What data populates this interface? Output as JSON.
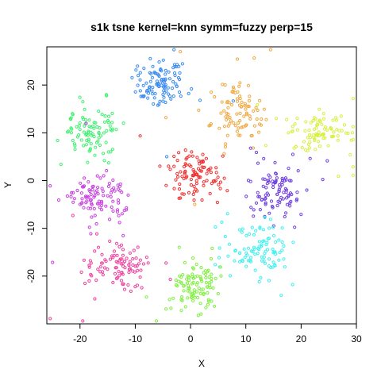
{
  "chart_data": {
    "type": "scatter",
    "title": "s1k tsne kernel=knn symm=fuzzy perp=15",
    "xlabel": "X",
    "ylabel": "Y",
    "xlim": [
      -26,
      30
    ],
    "ylim": [
      -30,
      28
    ],
    "xticks": [
      -20,
      -10,
      0,
      10,
      20,
      30
    ],
    "yticks": [
      -20,
      -10,
      0,
      10,
      20
    ],
    "grid": false,
    "marker": "open-circle",
    "clusters": [
      {
        "color": "#3b8cf0",
        "center": [
          -5.5,
          20.5
        ],
        "spread": [
          2.4,
          2.6
        ],
        "n": 110
      },
      {
        "color": "#f0a840",
        "center": [
          9.0,
          14.0
        ],
        "spread": [
          2.6,
          3.0
        ],
        "n": 95
      },
      {
        "color": "#d8f040",
        "center": [
          23.5,
          10.5
        ],
        "spread": [
          2.4,
          2.0
        ],
        "n": 95
      },
      {
        "color": "#40f070",
        "center": [
          -18.0,
          10.0
        ],
        "spread": [
          2.4,
          2.6
        ],
        "n": 95
      },
      {
        "color": "#f03030",
        "center": [
          0.5,
          1.0
        ],
        "spread": [
          2.2,
          2.8
        ],
        "n": 100
      },
      {
        "color": "#7040e0",
        "center": [
          15.5,
          -1.5
        ],
        "spread": [
          2.4,
          2.8
        ],
        "n": 100
      },
      {
        "color": "#c840e0",
        "center": [
          -17.0,
          -4.0
        ],
        "spread": [
          2.8,
          2.6
        ],
        "n": 100
      },
      {
        "color": "#40f0f0",
        "center": [
          12.0,
          -14.5
        ],
        "spread": [
          3.0,
          2.8
        ],
        "n": 100
      },
      {
        "color": "#f040a0",
        "center": [
          -13.5,
          -18.0
        ],
        "spread": [
          2.8,
          2.4
        ],
        "n": 100
      },
      {
        "color": "#80f040",
        "center": [
          1.0,
          -22.0
        ],
        "spread": [
          2.4,
          2.4
        ],
        "n": 105
      }
    ]
  }
}
